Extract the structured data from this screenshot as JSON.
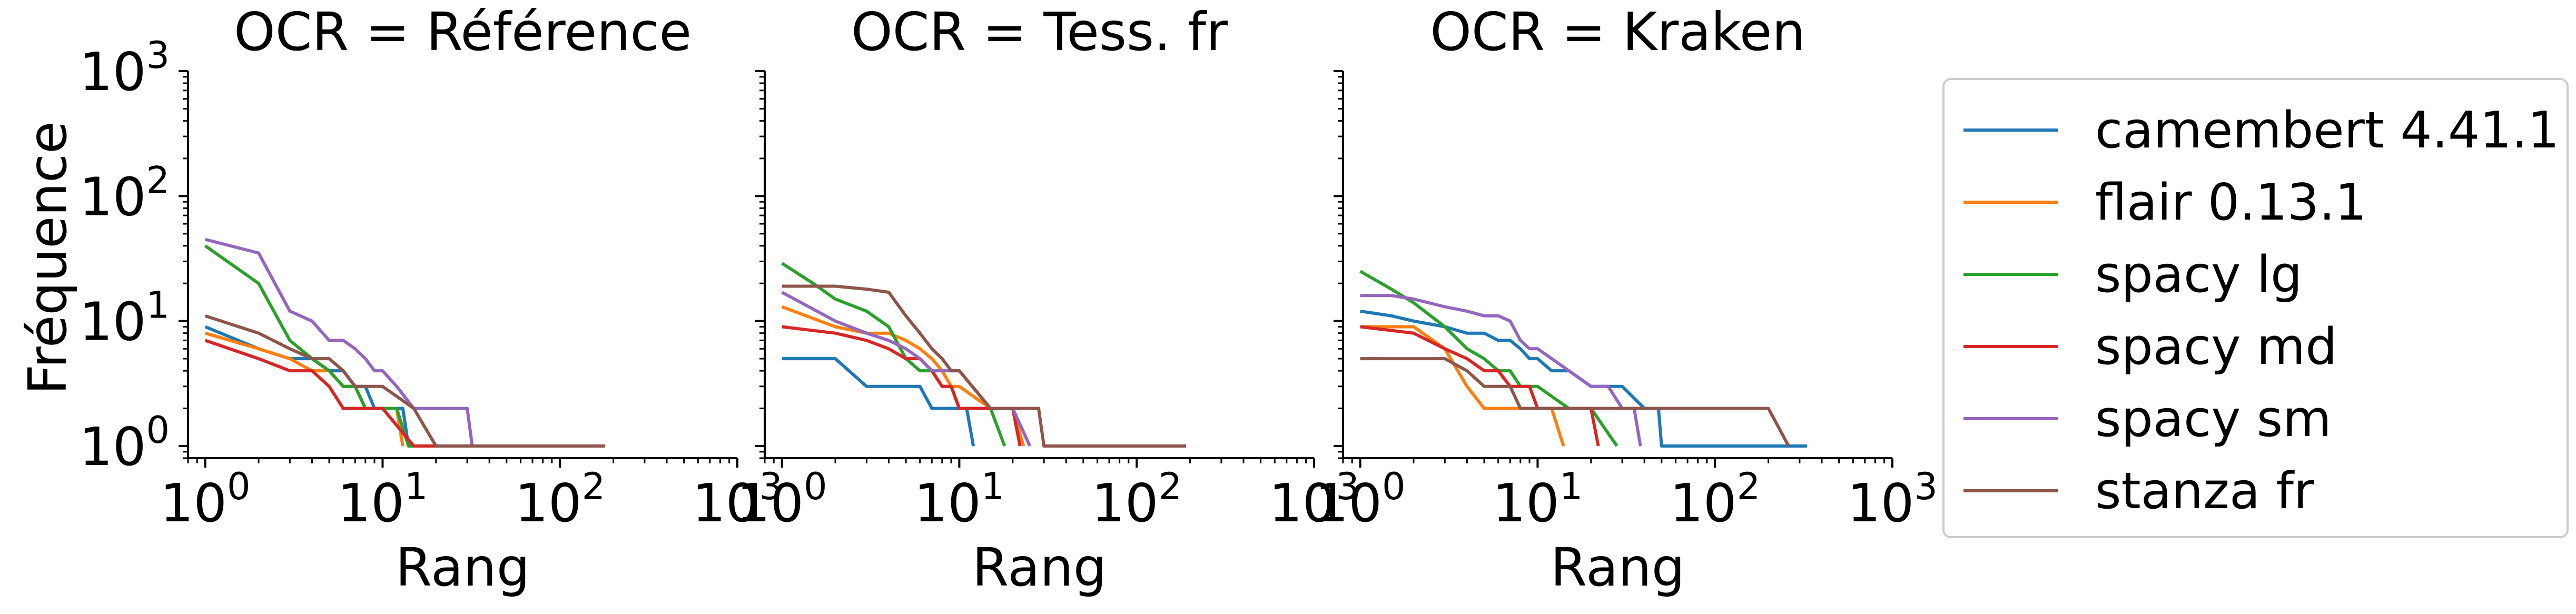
{
  "figure": {
    "ylabel": "Fréquence",
    "xlabel": "Rang",
    "legend_placement": "right, outside plots"
  },
  "chart_data": [
    {
      "type": "line",
      "title": "OCR = Référence",
      "xlabel": "Rang",
      "ylabel": "Fréquence",
      "xscale": "log",
      "yscale": "log",
      "xlim": [
        0.8,
        1000
      ],
      "ylim": [
        0.8,
        1000
      ],
      "x_ticks": [
        "10^0",
        "10^1",
        "10^2",
        "10^3"
      ],
      "y_ticks": [
        "10^0",
        "10^1",
        "10^2",
        "10^3"
      ],
      "grid": false,
      "series": [
        {
          "name": "camembert 4.41.1",
          "color": "#1f77b4",
          "x": [
            1,
            2,
            3,
            4,
            5,
            6,
            7,
            8,
            9,
            10,
            11,
            12,
            13,
            14,
            15
          ],
          "y": [
            9,
            6,
            5,
            5,
            4,
            4,
            3,
            3,
            2,
            2,
            2,
            2,
            2,
            1,
            1
          ]
        },
        {
          "name": "flair 0.13.1",
          "color": "#ff7f0e",
          "x": [
            1,
            2,
            3,
            4,
            5,
            6,
            7,
            8,
            9,
            10,
            11,
            12,
            13
          ],
          "y": [
            8,
            6,
            5,
            4,
            4,
            3,
            3,
            2,
            2,
            2,
            2,
            2,
            1
          ]
        },
        {
          "name": "spacy lg",
          "color": "#2ca02c",
          "x": [
            1,
            2,
            3,
            4,
            5,
            6,
            7,
            8,
            9,
            10,
            12,
            14,
            16
          ],
          "y": [
            40,
            20,
            7,
            5,
            4,
            3,
            3,
            2,
            2,
            2,
            2,
            1,
            1
          ]
        },
        {
          "name": "spacy md",
          "color": "#d62728",
          "x": [
            1,
            2,
            3,
            4,
            5,
            6,
            7,
            8,
            9,
            10,
            15,
            20
          ],
          "y": [
            7,
            5,
            4,
            4,
            3,
            2,
            2,
            2,
            2,
            2,
            1,
            1
          ]
        },
        {
          "name": "spacy sm",
          "color": "#9467bd",
          "x": [
            1,
            2,
            3,
            4,
            5,
            6,
            7,
            8,
            9,
            10,
            12,
            15,
            20,
            25,
            30,
            32
          ],
          "y": [
            45,
            35,
            12,
            10,
            7,
            7,
            6,
            5,
            4,
            4,
            3,
            2,
            2,
            2,
            2,
            1
          ]
        },
        {
          "name": "stanza fr",
          "color": "#8c564b",
          "x": [
            1,
            2,
            3,
            4,
            5,
            6,
            7,
            8,
            9,
            10,
            15,
            20,
            30,
            50,
            100,
            180
          ],
          "y": [
            11,
            8,
            6,
            5,
            5,
            4,
            3,
            3,
            3,
            3,
            2,
            1,
            1,
            1,
            1,
            1
          ]
        }
      ]
    },
    {
      "type": "line",
      "title": "OCR = Tess. fr",
      "xlabel": "Rang",
      "xscale": "log",
      "yscale": "log",
      "xlim": [
        0.8,
        1000
      ],
      "ylim": [
        0.8,
        1000
      ],
      "x_ticks": [
        "10^0",
        "10^1",
        "10^2",
        "10^3"
      ],
      "grid": false,
      "series": [
        {
          "name": "camembert 4.41.1",
          "color": "#1f77b4",
          "x": [
            1,
            2,
            3,
            4,
            5,
            6,
            7,
            8,
            9,
            10,
            11,
            12
          ],
          "y": [
            5,
            5,
            3,
            3,
            3,
            3,
            2,
            2,
            2,
            2,
            2,
            1
          ]
        },
        {
          "name": "flair 0.13.1",
          "color": "#ff7f0e",
          "x": [
            1,
            2,
            3,
            4,
            5,
            6,
            7,
            8,
            9,
            10,
            15,
            20,
            23
          ],
          "y": [
            13,
            9,
            8,
            8,
            7,
            6,
            5,
            4,
            3,
            3,
            2,
            2,
            1
          ]
        },
        {
          "name": "spacy lg",
          "color": "#2ca02c",
          "x": [
            1,
            1.5,
            2,
            3,
            4,
            5,
            6,
            7,
            8,
            9,
            10,
            15,
            18
          ],
          "y": [
            29,
            20,
            15,
            12,
            9,
            5,
            4,
            4,
            3,
            3,
            2,
            2,
            1
          ]
        },
        {
          "name": "spacy md",
          "color": "#d62728",
          "x": [
            1,
            2,
            3,
            4,
            5,
            6,
            7,
            8,
            9,
            10,
            15,
            20,
            22
          ],
          "y": [
            9,
            8,
            7,
            6,
            5,
            5,
            4,
            3,
            3,
            2,
            2,
            2,
            1
          ]
        },
        {
          "name": "spacy sm",
          "color": "#9467bd",
          "x": [
            1,
            2,
            3,
            4,
            5,
            6,
            7,
            8,
            9,
            10,
            15,
            20,
            25
          ],
          "y": [
            17,
            10,
            8,
            7,
            6,
            5,
            4,
            4,
            4,
            4,
            2,
            2,
            1
          ]
        },
        {
          "name": "stanza fr",
          "color": "#8c564b",
          "x": [
            1,
            2,
            3,
            4,
            5,
            6,
            7,
            8,
            9,
            10,
            15,
            20,
            28,
            30,
            50,
            100,
            190
          ],
          "y": [
            19,
            19,
            18,
            17,
            11,
            8,
            6,
            5,
            4,
            4,
            2,
            2,
            2,
            1,
            1,
            1,
            1
          ]
        }
      ]
    },
    {
      "type": "line",
      "title": "OCR = Kraken",
      "xlabel": "Rang",
      "xscale": "log",
      "yscale": "log",
      "xlim": [
        0.8,
        1000
      ],
      "ylim": [
        0.8,
        1000
      ],
      "x_ticks": [
        "10^0",
        "10^1",
        "10^2",
        "10^3"
      ],
      "grid": false,
      "series": [
        {
          "name": "camembert 4.41.1",
          "color": "#1f77b4",
          "x": [
            1,
            1.5,
            2,
            3,
            4,
            5,
            6,
            7,
            8,
            9,
            10,
            12,
            15,
            20,
            25,
            30,
            40,
            48,
            50,
            100,
            200,
            330
          ],
          "y": [
            12,
            11,
            10,
            9,
            8,
            8,
            7,
            7,
            6,
            5,
            5,
            4,
            4,
            3,
            3,
            3,
            2,
            2,
            1,
            1,
            1,
            1
          ]
        },
        {
          "name": "flair 0.13.1",
          "color": "#ff7f0e",
          "x": [
            1,
            2,
            3,
            4,
            5,
            6,
            7,
            8,
            9,
            10,
            12,
            14
          ],
          "y": [
            9,
            9,
            6,
            3,
            2,
            2,
            2,
            2,
            2,
            2,
            2,
            1
          ]
        },
        {
          "name": "spacy lg",
          "color": "#2ca02c",
          "x": [
            1,
            1.5,
            2,
            3,
            4,
            5,
            6,
            7,
            8,
            9,
            10,
            15,
            20,
            28
          ],
          "y": [
            25,
            18,
            14,
            9,
            6,
            5,
            4,
            4,
            3,
            3,
            3,
            2,
            2,
            1
          ]
        },
        {
          "name": "spacy md",
          "color": "#d62728",
          "x": [
            1,
            2,
            3,
            4,
            5,
            6,
            7,
            8,
            9,
            10,
            15,
            20,
            22
          ],
          "y": [
            9,
            8,
            6,
            5,
            4,
            4,
            3,
            3,
            3,
            2,
            2,
            2,
            1
          ]
        },
        {
          "name": "spacy sm",
          "color": "#9467bd",
          "x": [
            1,
            1.5,
            2,
            3,
            4,
            5,
            6,
            7,
            8,
            9,
            10,
            12,
            15,
            20,
            25,
            30,
            35,
            38
          ],
          "y": [
            16,
            16,
            15,
            13,
            12,
            11,
            11,
            10,
            7,
            6,
            6,
            5,
            4,
            3,
            3,
            2,
            2,
            1
          ]
        },
        {
          "name": "stanza fr",
          "color": "#8c564b",
          "x": [
            1,
            2,
            3,
            4,
            5,
            6,
            7,
            8,
            9,
            10,
            15,
            20,
            25,
            30,
            40,
            60,
            100,
            200,
            260
          ],
          "y": [
            5,
            5,
            5,
            4,
            3,
            3,
            3,
            2,
            2,
            2,
            2,
            2,
            2,
            2,
            2,
            2,
            2,
            2,
            1
          ]
        }
      ]
    }
  ]
}
